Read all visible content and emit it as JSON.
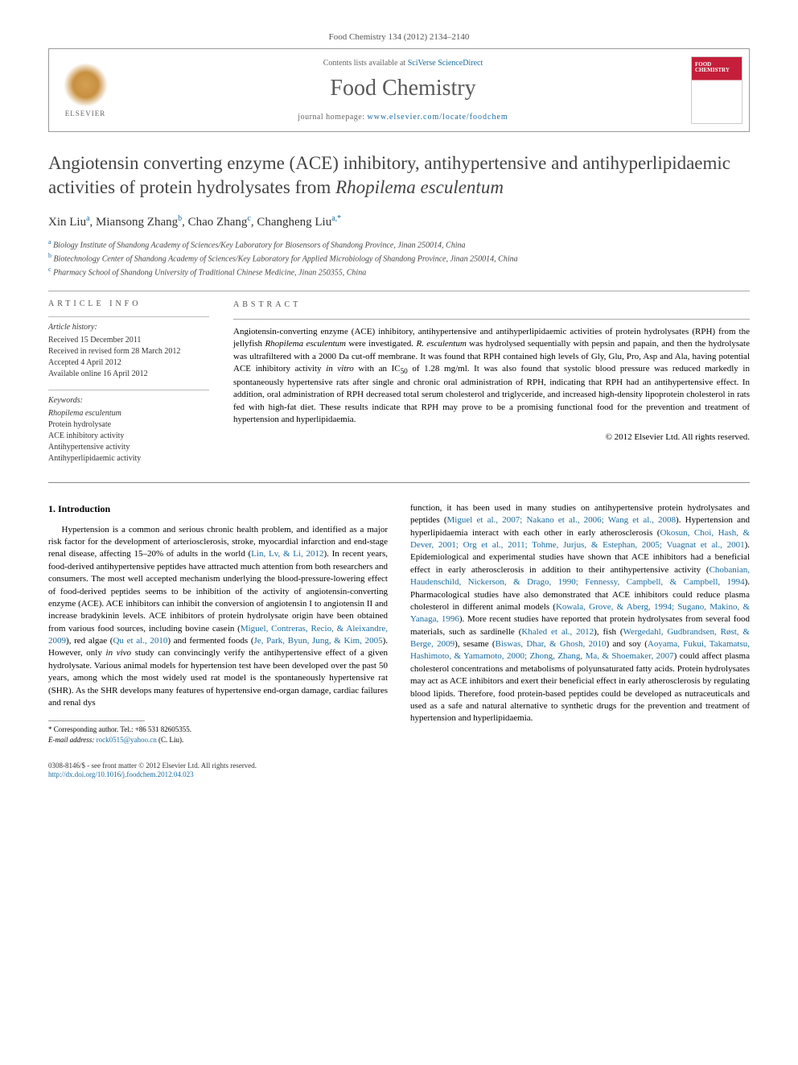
{
  "citation": "Food Chemistry 134 (2012) 2134–2140",
  "header": {
    "contents_prefix": "Contents lists available at ",
    "contents_link": "SciVerse ScienceDirect",
    "journal": "Food Chemistry",
    "homepage_prefix": "journal homepage: ",
    "homepage_url": "www.elsevier.com/locate/foodchem",
    "publisher": "ELSEVIER",
    "cover_title": "FOOD CHEMISTRY"
  },
  "title": {
    "main": "Angiotensin converting enzyme (ACE) inhibitory, antihypertensive and antihyperlipidaemic activities of protein hydrolysates from ",
    "italic": "Rhopilema esculentum"
  },
  "authors": [
    {
      "name": "Xin Liu",
      "sup": "a"
    },
    {
      "name": "Miansong Zhang",
      "sup": "b"
    },
    {
      "name": "Chao Zhang",
      "sup": "c"
    },
    {
      "name": "Changheng Liu",
      "sup": "a,*"
    }
  ],
  "affiliations": [
    {
      "sup": "a",
      "text": "Biology Institute of Shandong Academy of Sciences/Key Laboratory for Biosensors of Shandong Province, Jinan 250014, China"
    },
    {
      "sup": "b",
      "text": "Biotechnology Center of Shandong Academy of Sciences/Key Laboratory for Applied Microbiology of Shandong Province, Jinan 250014, China"
    },
    {
      "sup": "c",
      "text": "Pharmacy School of Shandong University of Traditional Chinese Medicine, Jinan 250355, China"
    }
  ],
  "article_info": {
    "label": "ARTICLE INFO",
    "history_head": "Article history:",
    "history": [
      "Received 15 December 2011",
      "Received in revised form 28 March 2012",
      "Accepted 4 April 2012",
      "Available online 16 April 2012"
    ],
    "keywords_head": "Keywords:",
    "keywords": [
      "Rhopilema esculentum",
      "Protein hydrolysate",
      "ACE inhibitory activity",
      "Antihypertensive activity",
      "Antihyperlipidaemic activity"
    ]
  },
  "abstract": {
    "label": "ABSTRACT",
    "text": "Angiotensin-converting enzyme (ACE) inhibitory, antihypertensive and antihyperlipidaemic activities of protein hydrolysates (RPH) from the jellyfish Rhopilema esculentum were investigated. R. esculentum was hydrolysed sequentially with pepsin and papain, and then the hydrolysate was ultrafiltered with a 2000 Da cut-off membrane. It was found that RPH contained high levels of Gly, Glu, Pro, Asp and Ala, having potential ACE inhibitory activity in vitro with an IC50 of 1.28 mg/ml. It was also found that systolic blood pressure was reduced markedly in spontaneously hypertensive rats after single and chronic oral administration of RPH, indicating that RPH had an antihypertensive effect. In addition, oral administration of RPH decreased total serum cholesterol and triglyceride, and increased high-density lipoprotein cholesterol in rats fed with high-fat diet. These results indicate that RPH may prove to be a promising functional food for the prevention and treatment of hypertension and hyperlipidaemia.",
    "copyright": "© 2012 Elsevier Ltd. All rights reserved."
  },
  "intro": {
    "heading": "1. Introduction",
    "paragraphs": [
      "Hypertension is a common and serious chronic health problem, and identified as a major risk factor for the development of arteriosclerosis, stroke, myocardial infarction and end-stage renal disease, affecting 15–20% of adults in the world (Lin, Lv, & Li, 2012). In recent years, food-derived antihypertensive peptides have attracted much attention from both researchers and consumers. The most well accepted mechanism underlying the blood-pressure-lowering effect of food-derived peptides seems to be inhibition of the activity of angiotensin-converting enzyme (ACE). ACE inhibitors can inhibit the conversion of angiotensin I to angiotensin II and increase bradykinin levels. ACE inhibitors of protein hydrolysate origin have been obtained from various food sources, including bovine casein (Miguel, Contreras, Recio, & Aleixandre, 2009), red algae (Qu et al., 2010) and fermented foods (Je, Park, Byun, Jung, & Kim, 2005). However, only in vivo study can convincingly verify the antihypertensive effect of a given hydrolysate. Various animal models for hypertension test have been developed over the past 50 years, among which the most widely used rat model is the spontaneously hypertensive rat (SHR). As the SHR develops many features of hypertensive end-organ damage, cardiac failures and renal dys",
      "function, it has been used in many studies on antihypertensive protein hydrolysates and peptides (Miguel et al., 2007; Nakano et al., 2006; Wang et al., 2008). Hypertension and hyperlipidaemia interact with each other in early atherosclerosis (Okosun, Choi, Hash, & Dever, 2001; Org et al., 2011; Tohme, Jurjus, & Estephan, 2005; Vuagnat et al., 2001). Epidemiological and experimental studies have shown that ACE inhibitors had a beneficial effect in early atherosclerosis in addition to their antihypertensive activity (Chobanian, Haudenschild, Nickerson, & Drago, 1990; Fennessy, Campbell, & Campbell, 1994). Pharmacological studies have also demonstrated that ACE inhibitors could reduce plasma cholesterol in different animal models (Kowala, Grove, & Aberg, 1994; Sugano, Makino, & Yanaga, 1996). More recent studies have reported that protein hydrolysates from several food materials, such as sardinelle (Khaled et al., 2012), fish (Wergedahl, Gudbrandsen, Røst, & Berge, 2009), sesame (Biswas, Dhar, & Ghosh, 2010) and soy (Aoyama, Fukui, Takamatsu, Hashimoto, & Yamamoto, 2000; Zhong, Zhang, Ma, & Shoemaker, 2007) could affect plasma cholesterol concentrations and metabolisms of polyunsaturated fatty acids. Protein hydrolysates may act as ACE inhibitors and exert their beneficial effect in early atherosclerosis by regulating blood lipids. Therefore, food protein-based peptides could be developed as nutraceuticals and used as a safe and natural alternative to synthetic drugs for the prevention and treatment of hypertension and hyperlipidaemia."
    ]
  },
  "footnote": {
    "corr_label": "* Corresponding author. Tel.: +86 531 82605355.",
    "email_label": "E-mail address:",
    "email": "rock0515@yahoo.cn",
    "email_suffix": "(C. Liu)."
  },
  "footer": {
    "issn": "0308-8146/$ - see front matter © 2012 Elsevier Ltd. All rights reserved.",
    "doi": "http://dx.doi.org/10.1016/j.foodchem.2012.04.023"
  },
  "colors": {
    "link": "#1a6b9f",
    "text": "#000000",
    "muted": "#555555",
    "border": "#999999",
    "cover_red": "#c41e3a"
  }
}
